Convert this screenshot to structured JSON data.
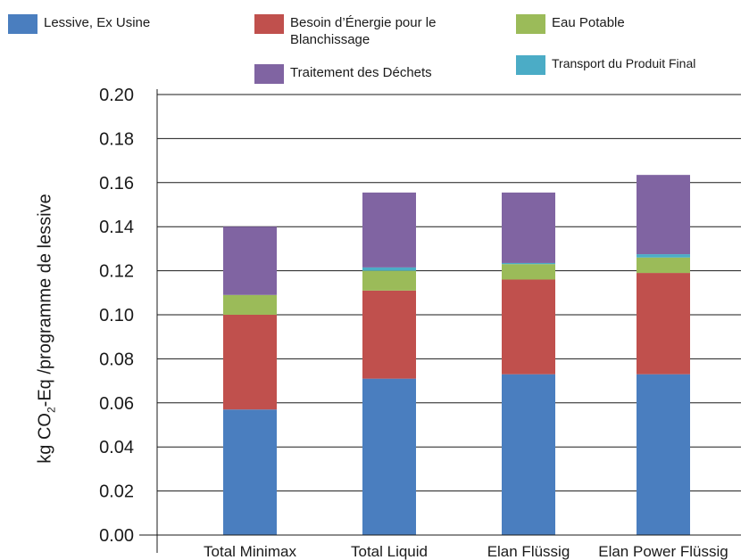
{
  "legend": [
    {
      "label": "Lessive, Ex Usine",
      "color": "#4a7ebf"
    },
    {
      "label": "Besoin d’Énergie pour le Blanchissage",
      "color": "#c0504d"
    },
    {
      "label": "Eau Potable",
      "color": "#9bbb59"
    },
    {
      "label": "Traitement des Déchets",
      "color": "#8064a2"
    },
    {
      "label": "Transport du Produit Final",
      "color": "#4bacc6"
    }
  ],
  "y_axis_label": {
    "prefix": "kg CO",
    "subscript": "2",
    "suffix": "-Eq /programme de lessive"
  },
  "chart_data": {
    "type": "bar",
    "stacked": true,
    "categories": [
      "Total Minimax",
      "Total Liquid",
      "Elan Flüssig",
      "Elan Power Flüssig"
    ],
    "series": [
      {
        "name": "Lessive, Ex Usine",
        "color": "#4a7ebf",
        "values": [
          0.057,
          0.071,
          0.073,
          0.073
        ]
      },
      {
        "name": "Besoin d’Énergie pour le Blanchissage",
        "color": "#c0504d",
        "values": [
          0.043,
          0.04,
          0.043,
          0.046
        ]
      },
      {
        "name": "Eau Potable",
        "color": "#9bbb59",
        "values": [
          0.009,
          0.009,
          0.007,
          0.007
        ]
      },
      {
        "name": "Transport du Produit Final",
        "color": "#4bacc6",
        "values": [
          0.0,
          0.0015,
          0.0005,
          0.0015
        ]
      },
      {
        "name": "Traitement des Déchets",
        "color": "#8064a2",
        "values": [
          0.031,
          0.034,
          0.032,
          0.036
        ]
      }
    ],
    "ylabel": "kg CO2-Eq /programme de lessive",
    "ylim": [
      0,
      0.2
    ],
    "yticks": [
      "0.00",
      "0.02",
      "0.04",
      "0.06",
      "0.08",
      "0.10",
      "0.12",
      "0.14",
      "0.16",
      "0.18",
      "0.20"
    ],
    "grid": true,
    "legend_position": "top"
  }
}
